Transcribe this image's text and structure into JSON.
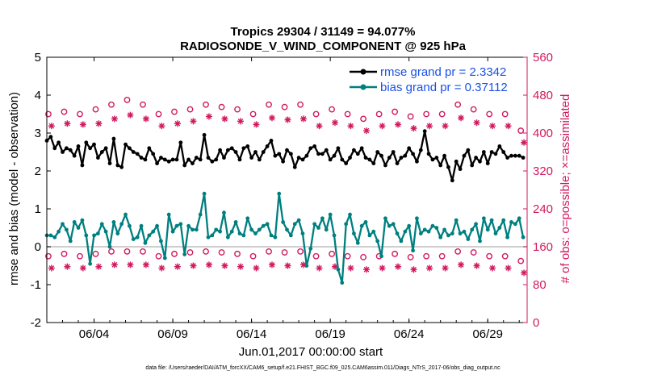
{
  "chart_data": {
    "type": "line",
    "title": "Tropics 29304 / 31149 = 94.077%",
    "subtitle": "RADIOSONDE_V_WIND_COMPONENT @ 925 hPa",
    "xlabel": "Jun.01,2017 00:00:00 start",
    "ylabel": "rmse and bias (model - observation)",
    "y2label": "# of obs: o=possible; ×=assimilated",
    "ylim": [
      -2,
      5
    ],
    "y2lim": [
      0,
      560
    ],
    "xlim": [
      1,
      31.5
    ],
    "yticks": [
      "-2",
      "-1",
      "0",
      "1",
      "2",
      "3",
      "4",
      "5"
    ],
    "y2ticks": [
      "0",
      "80",
      "160",
      "240",
      "320",
      "400",
      "480",
      "560"
    ],
    "xticks": [
      {
        "x": 4,
        "label": "06/04"
      },
      {
        "x": 9,
        "label": "06/09"
      },
      {
        "x": 14,
        "label": "06/14"
      },
      {
        "x": 19,
        "label": "06/19"
      },
      {
        "x": 24,
        "label": "06/24"
      },
      {
        "x": 29,
        "label": "06/29"
      }
    ],
    "legend": {
      "placement": "top-right",
      "entries": [
        "rmse grand pr = 2.3342",
        "bias grand pr = 0.37112"
      ]
    },
    "footnote": "data file: /Users/raeder/DAI/ATM_forcXX/CAM6_setup/f.e21.FHIST_BGC.f09_025.CAM6assim.011/Diags_NTrS_2017-06/obs_diag_output.nc",
    "colors": {
      "rmse": "#000000",
      "bias": "#007f7f",
      "obs": "#d11a5e",
      "zero_line": "#bdbdbd"
    },
    "series": [
      {
        "name": "rmse",
        "x": [
          1.0,
          1.25,
          1.5,
          1.75,
          2.0,
          2.25,
          2.5,
          2.75,
          3.0,
          3.25,
          3.5,
          3.75,
          4.0,
          4.25,
          4.5,
          4.75,
          5.0,
          5.25,
          5.5,
          5.75,
          6.0,
          6.25,
          6.5,
          6.75,
          7.0,
          7.25,
          7.5,
          7.75,
          8.0,
          8.25,
          8.5,
          8.75,
          9.0,
          9.25,
          9.5,
          9.75,
          10.0,
          10.25,
          10.5,
          10.75,
          11.0,
          11.25,
          11.5,
          11.75,
          12.0,
          12.25,
          12.5,
          12.75,
          13.0,
          13.25,
          13.5,
          13.75,
          14.0,
          14.25,
          14.5,
          14.75,
          15.0,
          15.25,
          15.5,
          15.75,
          16.0,
          16.25,
          16.5,
          16.75,
          17.0,
          17.25,
          17.5,
          17.75,
          18.0,
          18.25,
          18.5,
          18.75,
          19.0,
          19.25,
          19.5,
          19.75,
          20.0,
          20.25,
          20.5,
          20.75,
          21.0,
          21.25,
          21.5,
          21.75,
          22.0,
          22.25,
          22.5,
          22.75,
          23.0,
          23.25,
          23.5,
          23.75,
          24.0,
          24.25,
          24.5,
          24.75,
          25.0,
          25.25,
          25.5,
          25.75,
          26.0,
          26.25,
          26.5,
          26.75,
          27.0,
          27.25,
          27.5,
          27.75,
          28.0,
          28.25,
          28.5,
          28.75,
          29.0,
          29.25,
          29.5,
          29.75,
          30.0,
          30.25,
          30.5,
          30.75,
          31.0,
          31.25
        ],
        "values": [
          2.8,
          2.9,
          2.6,
          2.75,
          2.5,
          2.6,
          2.55,
          2.4,
          2.65,
          2.15,
          2.75,
          2.6,
          2.7,
          2.35,
          2.5,
          2.6,
          2.2,
          2.85,
          2.15,
          2.1,
          2.7,
          2.6,
          2.5,
          2.45,
          2.35,
          2.3,
          2.6,
          2.45,
          2.2,
          2.35,
          2.3,
          2.25,
          2.3,
          2.3,
          2.75,
          2.15,
          2.3,
          2.2,
          2.35,
          2.3,
          2.95,
          2.35,
          2.25,
          2.3,
          2.55,
          2.35,
          2.55,
          2.6,
          2.5,
          2.3,
          2.6,
          2.65,
          2.35,
          2.5,
          2.3,
          2.5,
          2.65,
          2.8,
          2.4,
          2.45,
          2.25,
          2.55,
          2.45,
          2.1,
          2.35,
          2.3,
          2.4,
          2.6,
          2.65,
          2.45,
          2.45,
          2.55,
          2.3,
          2.4,
          2.6,
          2.3,
          2.2,
          2.35,
          2.55,
          2.45,
          2.6,
          2.35,
          2.3,
          2.2,
          2.5,
          2.4,
          2.15,
          2.35,
          2.5,
          2.2,
          2.35,
          2.4,
          2.6,
          2.45,
          2.25,
          2.55,
          3.05,
          2.45,
          2.3,
          2.35,
          2.15,
          2.4,
          2.1,
          1.75,
          2.25,
          2.05,
          2.4,
          2.55,
          2.15,
          2.35,
          2.25,
          2.5,
          2.2,
          2.5,
          2.45,
          2.65,
          2.5,
          2.35,
          2.4,
          2.4,
          2.4,
          2.35
        ]
      },
      {
        "name": "bias",
        "x": [
          1.0,
          1.25,
          1.5,
          1.75,
          2.0,
          2.25,
          2.5,
          2.75,
          3.0,
          3.25,
          3.5,
          3.75,
          4.0,
          4.25,
          4.5,
          4.75,
          5.0,
          5.25,
          5.5,
          5.75,
          6.0,
          6.25,
          6.5,
          6.75,
          7.0,
          7.25,
          7.5,
          7.75,
          8.0,
          8.25,
          8.5,
          8.75,
          9.0,
          9.25,
          9.5,
          9.75,
          10.0,
          10.25,
          10.5,
          10.75,
          11.0,
          11.25,
          11.5,
          11.75,
          12.0,
          12.25,
          12.5,
          12.75,
          13.0,
          13.25,
          13.5,
          13.75,
          14.0,
          14.25,
          14.5,
          14.75,
          15.0,
          15.25,
          15.5,
          15.75,
          16.0,
          16.25,
          16.5,
          16.75,
          17.0,
          17.25,
          17.5,
          17.75,
          18.0,
          18.25,
          18.5,
          18.75,
          19.0,
          19.25,
          19.5,
          19.75,
          20.0,
          20.25,
          20.5,
          20.75,
          21.0,
          21.25,
          21.5,
          21.75,
          22.0,
          22.25,
          22.5,
          22.75,
          23.0,
          23.25,
          23.5,
          23.75,
          24.0,
          24.25,
          24.5,
          24.75,
          25.0,
          25.25,
          25.5,
          25.75,
          26.0,
          26.25,
          26.5,
          26.75,
          27.0,
          27.25,
          27.5,
          27.75,
          28.0,
          28.25,
          28.5,
          28.75,
          29.0,
          29.25,
          29.5,
          29.75,
          30.0,
          30.25,
          30.5,
          30.75,
          31.0,
          31.25
        ],
        "values": [
          0.3,
          0.3,
          0.25,
          0.4,
          0.6,
          0.45,
          0.15,
          0.65,
          0.5,
          0.7,
          0.3,
          -0.45,
          0.3,
          0.35,
          0.6,
          0.4,
          0.0,
          0.65,
          0.35,
          0.6,
          0.85,
          0.55,
          0.2,
          0.25,
          0.55,
          0.1,
          0.3,
          0.4,
          0.55,
          0.15,
          -0.3,
          0.85,
          0.4,
          0.55,
          0.6,
          -0.2,
          0.55,
          0.45,
          0.45,
          0.85,
          1.4,
          0.25,
          0.3,
          0.45,
          0.4,
          0.9,
          0.25,
          0.4,
          0.65,
          0.35,
          0.3,
          0.75,
          0.45,
          0.35,
          0.45,
          0.55,
          0.6,
          0.3,
          0.25,
          1.4,
          0.65,
          0.45,
          0.3,
          0.6,
          0.7,
          0.35,
          -0.5,
          -0.05,
          0.6,
          0.5,
          0.75,
          0.45,
          0.85,
          0.3,
          -0.6,
          -0.95,
          0.6,
          0.85,
          0.35,
          0.1,
          0.55,
          0.65,
          0.3,
          0.4,
          0.15,
          -0.25,
          0.75,
          0.55,
          0.6,
          0.35,
          0.15,
          0.4,
          0.55,
          -0.1,
          0.75,
          0.35,
          0.45,
          0.4,
          0.55,
          0.5,
          0.25,
          0.45,
          0.3,
          0.35,
          0.7,
          0.35,
          0.4,
          0.2,
          0.45,
          0.6,
          0.15,
          0.75,
          0.45,
          0.7,
          0.35,
          0.5,
          0.7,
          0.25,
          0.65,
          0.6,
          0.75,
          0.25
        ]
      },
      {
        "name": "obs possible (o), rmse",
        "x": [
          1.1,
          2.1,
          3.1,
          4.1,
          5.1,
          6.1,
          7.1,
          8.1,
          9.1,
          10.1,
          11.1,
          12.1,
          13.1,
          14.1,
          15.1,
          16.1,
          17.1,
          18.1,
          19.1,
          20.1,
          21.1,
          22.1,
          23.1,
          24.1,
          25.1,
          26.1,
          27.1,
          28.1,
          29.1,
          30.1,
          31.1
        ],
        "values": [
          440,
          445,
          440,
          450,
          460,
          470,
          460,
          440,
          445,
          450,
          460,
          455,
          450,
          440,
          460,
          455,
          460,
          440,
          450,
          440,
          430,
          440,
          445,
          435,
          440,
          440,
          460,
          450,
          440,
          440,
          405
        ]
      },
      {
        "name": "obs assimilated (×), rmse",
        "x": [
          1.3,
          2.3,
          3.3,
          4.3,
          5.3,
          6.3,
          7.3,
          8.3,
          9.3,
          10.3,
          11.3,
          12.3,
          13.3,
          14.3,
          15.3,
          16.3,
          17.3,
          18.3,
          19.3,
          20.3,
          21.3,
          22.3,
          23.3,
          24.3,
          25.3,
          26.3,
          27.3,
          28.3,
          29.3,
          30.3,
          31.3
        ],
        "values": [
          415,
          420,
          418,
          420,
          430,
          438,
          430,
          415,
          420,
          425,
          435,
          430,
          425,
          418,
          432,
          428,
          430,
          415,
          422,
          415,
          405,
          415,
          418,
          410,
          415,
          415,
          432,
          422,
          415,
          415,
          380
        ]
      },
      {
        "name": "obs possible (o), bias",
        "x": [
          1.1,
          2.1,
          3.1,
          4.1,
          5.1,
          6.1,
          7.1,
          8.1,
          9.1,
          10.1,
          11.1,
          12.1,
          13.1,
          14.1,
          15.1,
          16.1,
          17.1,
          18.1,
          19.1,
          20.1,
          21.1,
          22.1,
          23.1,
          24.1,
          25.1,
          26.1,
          27.1,
          28.1,
          29.1,
          30.1,
          31.1
        ],
        "values": [
          140,
          145,
          140,
          145,
          150,
          150,
          150,
          140,
          145,
          148,
          150,
          148,
          145,
          140,
          150,
          148,
          150,
          140,
          145,
          140,
          138,
          140,
          145,
          138,
          140,
          140,
          150,
          148,
          140,
          140,
          130
        ]
      },
      {
        "name": "obs assimilated (×), bias",
        "x": [
          1.3,
          2.3,
          3.3,
          4.3,
          5.3,
          6.3,
          7.3,
          8.3,
          9.3,
          10.3,
          11.3,
          12.3,
          13.3,
          14.3,
          15.3,
          16.3,
          17.3,
          18.3,
          19.3,
          20.3,
          21.3,
          22.3,
          23.3,
          24.3,
          25.3,
          26.3,
          27.3,
          28.3,
          29.3,
          30.3,
          31.3
        ],
        "values": [
          115,
          118,
          115,
          118,
          122,
          122,
          122,
          115,
          118,
          120,
          122,
          120,
          118,
          115,
          122,
          120,
          122,
          115,
          118,
          115,
          112,
          115,
          118,
          112,
          115,
          115,
          122,
          120,
          115,
          115,
          105
        ]
      }
    ]
  }
}
